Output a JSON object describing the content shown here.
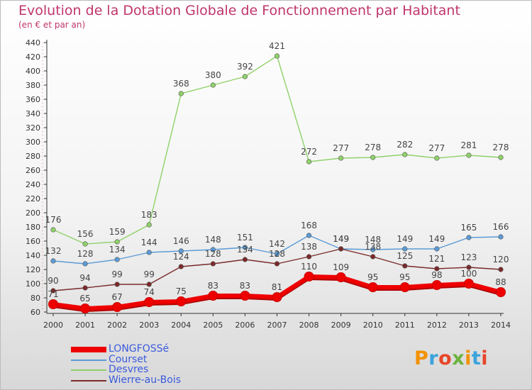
{
  "title": "Evolution de la Dotation Globale de Fonctionnement par Habitant",
  "subtitle": "(en € et par an)",
  "logo": {
    "text": "Proxiti",
    "colors": [
      "#f39200",
      "#3aa3dc",
      "#e8462a",
      "#6cb33f",
      "#f39200",
      "#3aa3dc",
      "#e8462a"
    ]
  },
  "chart_data": {
    "type": "line",
    "title": "Evolution de la Dotation Globale de Fonctionnement par Habitant",
    "subtitle": "(en € et par an)",
    "x": [
      2000,
      2001,
      2002,
      2003,
      2004,
      2005,
      2006,
      2007,
      2008,
      2009,
      2010,
      2011,
      2012,
      2013,
      2014
    ],
    "ylim": [
      60,
      440
    ],
    "yticks": [
      60,
      80,
      100,
      120,
      140,
      160,
      180,
      200,
      220,
      240,
      260,
      280,
      300,
      320,
      340,
      360,
      380,
      400,
      420,
      440
    ],
    "grid": false,
    "legend": "bottom-left",
    "series": [
      {
        "name": "LONGFOSSé",
        "color": "#ee0000",
        "values": [
          71,
          65,
          67,
          74,
          75,
          83,
          83,
          81,
          110,
          109,
          95,
          95,
          98,
          100,
          88
        ]
      },
      {
        "name": "Courset",
        "color": "#5b9bd5",
        "values": [
          132,
          128,
          134,
          144,
          146,
          148,
          151,
          142,
          168,
          149,
          148,
          149,
          149,
          165,
          166
        ]
      },
      {
        "name": "Desvres",
        "color": "#8fd16a",
        "values": [
          176,
          156,
          159,
          183,
          368,
          380,
          392,
          421,
          272,
          277,
          278,
          282,
          277,
          281,
          278
        ]
      },
      {
        "name": "Wierre-au-Bois",
        "color": "#7a2a2a",
        "values": [
          90,
          94,
          99,
          99,
          124,
          128,
          134,
          128,
          138,
          149,
          138,
          125,
          121,
          123,
          120
        ]
      }
    ]
  }
}
